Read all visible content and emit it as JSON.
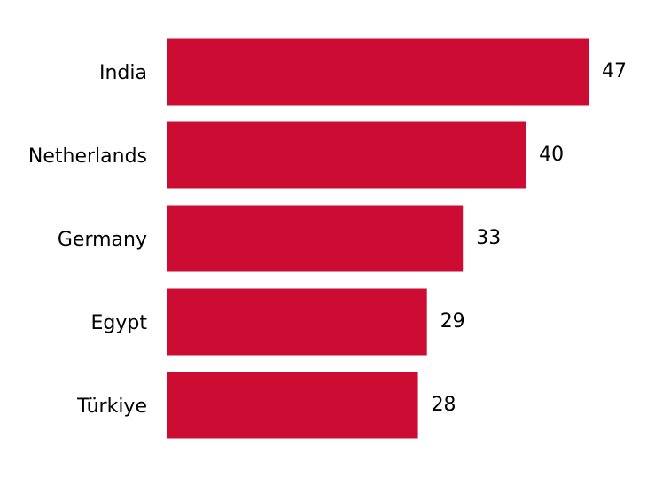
{
  "chart_data": {
    "type": "barh",
    "categories": [
      "India",
      "Netherlands",
      "Germany",
      "Egypt",
      "Türkiye"
    ],
    "values": [
      47,
      40,
      33,
      29,
      28
    ],
    "color": "#cc0c33",
    "xlim": [
      0,
      47
    ]
  }
}
